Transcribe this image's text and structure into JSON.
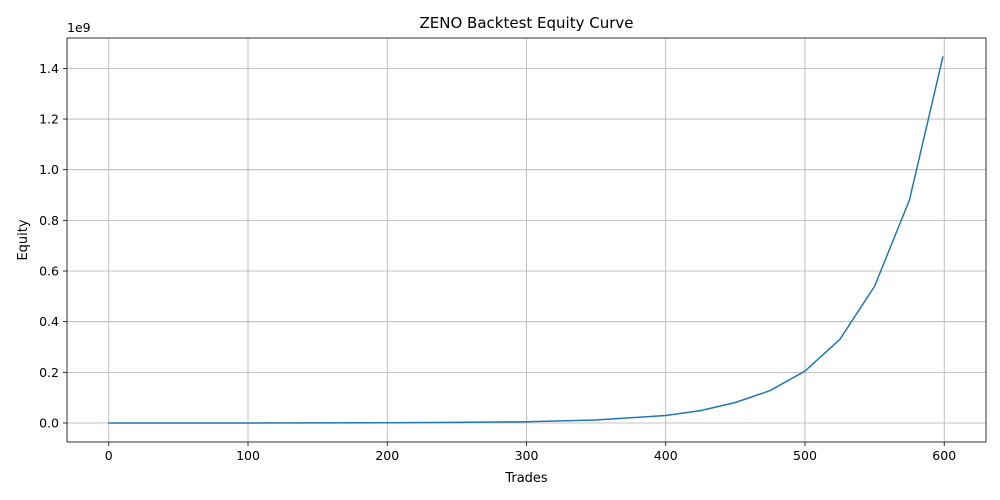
{
  "chart_data": {
    "type": "line",
    "title": "ZENO Backtest Equity Curve",
    "xlabel": "Trades",
    "ylabel": "Equity",
    "y_offset_label": "1e9",
    "xlim": [
      -30,
      630
    ],
    "ylim": [
      -0.075,
      1.52
    ],
    "x_ticks": [
      0,
      100,
      200,
      300,
      400,
      500,
      600
    ],
    "y_ticks": [
      0.0,
      0.2,
      0.4,
      0.6,
      0.8,
      1.0,
      1.2,
      1.4
    ],
    "x_tick_labels": [
      "0",
      "100",
      "200",
      "300",
      "400",
      "500",
      "600"
    ],
    "y_tick_labels": [
      "0.0",
      "0.2",
      "0.4",
      "0.6",
      "0.8",
      "1.0",
      "1.2",
      "1.4"
    ],
    "grid": true,
    "y_unit_multiplier": "1e9",
    "series": [
      {
        "color": "#1f77b4",
        "x": [
          0,
          50,
          100,
          150,
          200,
          250,
          300,
          350,
          400,
          425,
          450,
          475,
          500,
          525,
          550,
          575,
          599
        ],
        "y": [
          1e-05,
          5e-05,
          0.0002,
          0.0006,
          0.0012,
          0.0025,
          0.0048,
          0.012,
          0.0295,
          0.049,
          0.081,
          0.128,
          0.205,
          0.33,
          0.54,
          0.88,
          1.445
        ]
      }
    ]
  }
}
